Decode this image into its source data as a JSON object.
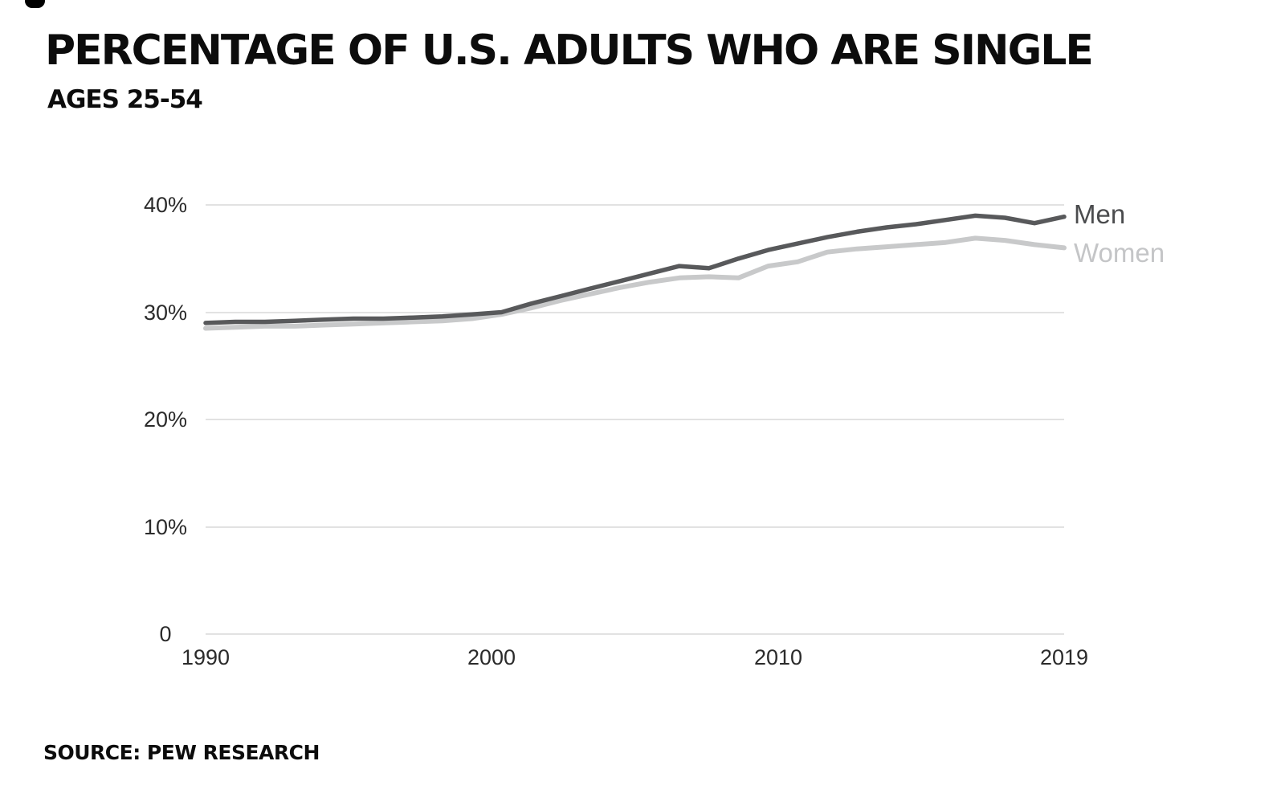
{
  "header": {
    "title": "PERCENTAGE OF U.S. ADULTS WHO ARE SINGLE",
    "subtitle": "AGES 25-54"
  },
  "footer": {
    "source": "SOURCE: PEW RESEARCH"
  },
  "chart_data": {
    "type": "line",
    "title": "PERCENTAGE OF U.S. ADULTS WHO ARE SINGLE",
    "subtitle": "AGES 25-54",
    "source": "SOURCE: PEW RESEARCH",
    "xlabel": "",
    "ylabel": "",
    "grid": "horizontal",
    "legend_position": "right-of-line-ends",
    "ylim": [
      0,
      40
    ],
    "ytick_labels": [
      "40%",
      "30%",
      "20%",
      "10%",
      "0"
    ],
    "xtick_labels": [
      "1990",
      "2000",
      "2010",
      "2019"
    ],
    "x": [
      1990,
      1991,
      1992,
      1993,
      1994,
      1995,
      1996,
      1997,
      1998,
      1999,
      2000,
      2001,
      2002,
      2003,
      2004,
      2005,
      2006,
      2007,
      2008,
      2009,
      2010,
      2011,
      2012,
      2013,
      2014,
      2015,
      2016,
      2017,
      2018,
      2019
    ],
    "series": [
      {
        "name": "Men",
        "color": "#58595b",
        "label_color": "#4b4c4e",
        "values": [
          29.0,
          29.1,
          29.1,
          29.2,
          29.3,
          29.4,
          29.4,
          29.5,
          29.6,
          29.8,
          30.0,
          30.8,
          31.5,
          32.2,
          32.9,
          33.6,
          34.3,
          34.1,
          35.0,
          35.8,
          36.4,
          37.0,
          37.5,
          37.9,
          38.2,
          38.6,
          39.0,
          38.8,
          38.3,
          38.9
        ]
      },
      {
        "name": "Women",
        "color": "#c8c9ca",
        "label_color": "#c4c5c7",
        "values": [
          28.5,
          28.6,
          28.7,
          28.7,
          28.8,
          28.9,
          29.0,
          29.1,
          29.2,
          29.4,
          29.8,
          30.4,
          31.1,
          31.7,
          32.3,
          32.8,
          33.2,
          33.3,
          33.2,
          34.3,
          34.7,
          35.6,
          35.9,
          36.1,
          36.3,
          36.5,
          36.9,
          36.7,
          36.3,
          36.0
        ]
      }
    ]
  }
}
